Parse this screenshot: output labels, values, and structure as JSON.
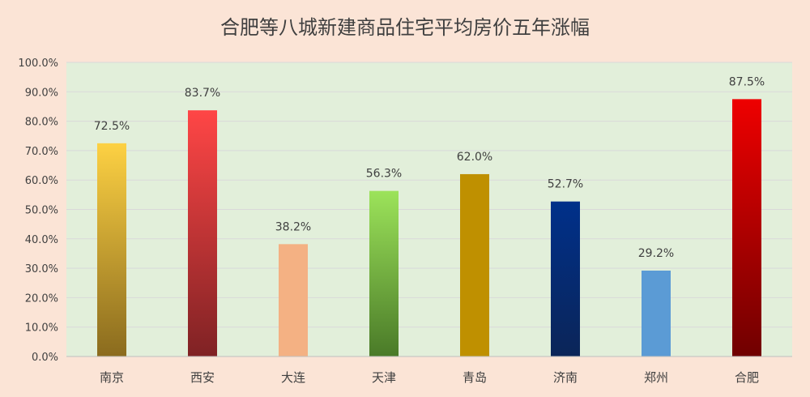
{
  "chart_data": {
    "type": "bar",
    "title": "合肥等八城新建商品住宅平均房价五年涨幅",
    "xlabel": "",
    "ylabel": "",
    "categories": [
      "南京",
      "西安",
      "大连",
      "天津",
      "青岛",
      "济南",
      "郑州",
      "合肥"
    ],
    "values": [
      72.5,
      83.7,
      38.2,
      56.3,
      62.0,
      52.7,
      29.2,
      87.5
    ],
    "data_labels": [
      "72.5%",
      "83.7%",
      "38.2%",
      "56.3%",
      "62.0%",
      "52.7%",
      "29.2%",
      "87.5%"
    ],
    "y_ticks": [
      "0.0%",
      "10.0%",
      "20.0%",
      "30.0%",
      "40.0%",
      "50.0%",
      "60.0%",
      "70.0%",
      "80.0%",
      "90.0%",
      "100.0%"
    ],
    "ylim": [
      0,
      100
    ],
    "grid": true,
    "legend": "none",
    "bar_colors": [
      [
        "#fdd143",
        "#8a6b1e"
      ],
      [
        "#ff4646",
        "#7f2224"
      ],
      [
        "#f4b183",
        "#f4b183"
      ],
      [
        "#9ce35a",
        "#4a7a28"
      ],
      [
        "#bf9000",
        "#bf9000"
      ],
      [
        "#00308a",
        "#0b2558"
      ],
      [
        "#5b9bd5",
        "#5b9bd5"
      ],
      [
        "#ee0000",
        "#700000"
      ]
    ],
    "plot_background": "#e2efda",
    "page_background": "#fbe4d6"
  }
}
